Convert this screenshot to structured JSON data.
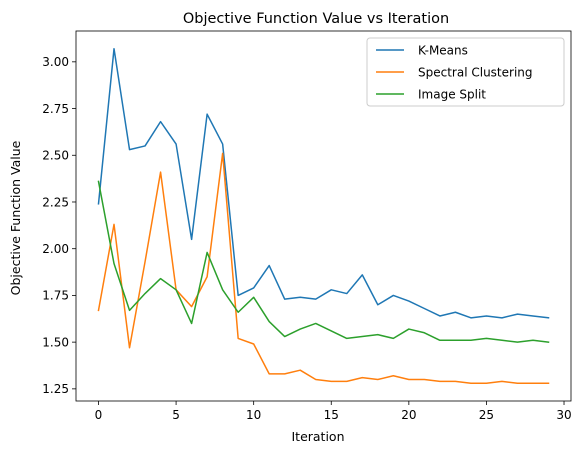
{
  "chart_data": {
    "type": "line",
    "title": "Objective Function Value vs Iteration",
    "xlabel": "Iteration",
    "ylabel": "Objective Function Value",
    "xlim": [
      -1.45,
      30.45
    ],
    "ylim": [
      1.185,
      3.165
    ],
    "xticks": [
      0,
      5,
      10,
      15,
      20,
      25,
      30
    ],
    "xtick_labels": [
      "0",
      "5",
      "10",
      "15",
      "20",
      "25",
      "30"
    ],
    "yticks": [
      1.25,
      1.5,
      1.75,
      2.0,
      2.25,
      2.5,
      2.75,
      3.0
    ],
    "ytick_labels": [
      "1.25",
      "1.50",
      "1.75",
      "2.00",
      "2.25",
      "2.50",
      "2.75",
      "3.00"
    ],
    "grid": false,
    "legend_position": "top-right",
    "x": [
      0,
      1,
      2,
      3,
      4,
      5,
      6,
      7,
      8,
      9,
      10,
      11,
      12,
      13,
      14,
      15,
      16,
      17,
      18,
      19,
      20,
      21,
      22,
      23,
      24,
      25,
      26,
      27,
      28,
      29
    ],
    "series": [
      {
        "name": "K-Means",
        "color": "#1f77b4",
        "values": [
          2.24,
          3.07,
          2.53,
          2.55,
          2.68,
          2.56,
          2.05,
          2.72,
          2.56,
          1.75,
          1.79,
          1.91,
          1.73,
          1.74,
          1.73,
          1.78,
          1.76,
          1.86,
          1.7,
          1.75,
          1.72,
          1.68,
          1.64,
          1.66,
          1.63,
          1.64,
          1.63,
          1.65,
          1.64,
          1.63
        ]
      },
      {
        "name": "Spectral Clustering",
        "color": "#ff7f0e",
        "values": [
          1.67,
          2.13,
          1.47,
          1.93,
          2.41,
          1.78,
          1.69,
          1.85,
          2.51,
          1.52,
          1.49,
          1.33,
          1.33,
          1.35,
          1.3,
          1.29,
          1.29,
          1.31,
          1.3,
          1.32,
          1.3,
          1.3,
          1.29,
          1.29,
          1.28,
          1.28,
          1.29,
          1.28,
          1.28,
          1.28
        ]
      },
      {
        "name": "Image Split",
        "color": "#2ca02c",
        "values": [
          2.36,
          1.92,
          1.67,
          1.76,
          1.84,
          1.78,
          1.6,
          1.98,
          1.78,
          1.66,
          1.74,
          1.61,
          1.53,
          1.57,
          1.6,
          1.56,
          1.52,
          1.53,
          1.54,
          1.52,
          1.57,
          1.55,
          1.51,
          1.51,
          1.51,
          1.52,
          1.51,
          1.5,
          1.51,
          1.5
        ]
      }
    ]
  }
}
